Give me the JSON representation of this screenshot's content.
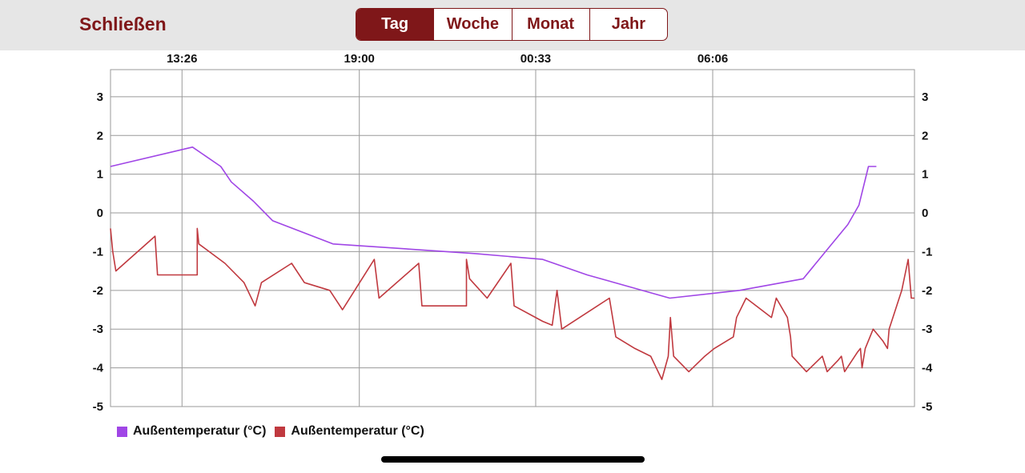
{
  "header": {
    "close_label": "Schließen",
    "tabs": [
      {
        "label": "Tag",
        "active": true
      },
      {
        "label": "Woche",
        "active": false
      },
      {
        "label": "Monat",
        "active": false
      },
      {
        "label": "Jahr",
        "active": false
      }
    ]
  },
  "colors": {
    "accent": "#7f1719",
    "series_purple": "#a046e6",
    "series_red": "#c0393f",
    "grid": "#8c8c8c"
  },
  "chart_data": {
    "type": "line",
    "title": "",
    "xlabel": "",
    "ylabel": "",
    "x_ticks": [
      "13:26",
      "19:00",
      "00:33",
      "06:06"
    ],
    "y_ticks": [
      3,
      2,
      1,
      0,
      -1,
      -2,
      -3,
      -4,
      -5
    ],
    "ylim": [
      -5,
      3.7
    ],
    "x_range_hours": [
      0,
      24.1
    ],
    "x_unit": "hours since left edge of plot (left edge ≈ 11:11)",
    "grid": true,
    "legend_position": "bottom-left",
    "series": [
      {
        "name": "Außentemperatur (°C)",
        "color": "#a046e6",
        "points": [
          [
            0.0,
            1.2
          ],
          [
            2.58,
            1.7
          ],
          [
            3.47,
            1.2
          ],
          [
            3.8,
            0.8
          ],
          [
            4.5,
            0.3
          ],
          [
            5.1,
            -0.2
          ],
          [
            7.0,
            -0.8
          ],
          [
            11.5,
            -1.05
          ],
          [
            13.6,
            -1.2
          ],
          [
            15.0,
            -1.6
          ],
          [
            17.6,
            -2.2
          ],
          [
            19.8,
            -2.0
          ],
          [
            21.8,
            -1.7
          ],
          [
            22.3,
            -1.2
          ],
          [
            22.7,
            -0.8
          ],
          [
            23.2,
            -0.3
          ],
          [
            23.55,
            0.2
          ],
          [
            23.85,
            1.2
          ],
          [
            24.1,
            1.2
          ]
        ]
      },
      {
        "name": "Außentemperatur (°C)",
        "color": "#c0393f",
        "points": [
          [
            0.0,
            -0.4
          ],
          [
            0.07,
            -1.0
          ],
          [
            0.17,
            -1.5
          ],
          [
            1.4,
            -0.6
          ],
          [
            1.48,
            -1.6
          ],
          [
            2.73,
            -1.6
          ],
          [
            2.73,
            -0.4
          ],
          [
            2.78,
            -0.8
          ],
          [
            3.6,
            -1.3
          ],
          [
            4.2,
            -1.8
          ],
          [
            4.55,
            -2.4
          ],
          [
            4.75,
            -1.8
          ],
          [
            5.7,
            -1.3
          ],
          [
            6.1,
            -1.8
          ],
          [
            6.9,
            -2.0
          ],
          [
            7.3,
            -2.5
          ],
          [
            8.3,
            -1.2
          ],
          [
            8.45,
            -2.2
          ],
          [
            9.7,
            -1.3
          ],
          [
            9.8,
            -2.4
          ],
          [
            11.2,
            -2.4
          ],
          [
            11.2,
            -1.2
          ],
          [
            11.3,
            -1.7
          ],
          [
            11.85,
            -2.2
          ],
          [
            12.6,
            -1.3
          ],
          [
            12.7,
            -2.4
          ],
          [
            13.6,
            -2.8
          ],
          [
            13.9,
            -2.9
          ],
          [
            14.05,
            -2.0
          ],
          [
            14.2,
            -3.0
          ],
          [
            15.7,
            -2.2
          ],
          [
            15.9,
            -3.2
          ],
          [
            16.5,
            -3.5
          ],
          [
            17.0,
            -3.7
          ],
          [
            17.35,
            -4.3
          ],
          [
            17.55,
            -3.7
          ],
          [
            17.62,
            -2.7
          ],
          [
            17.72,
            -3.7
          ],
          [
            18.2,
            -4.1
          ],
          [
            18.7,
            -3.7
          ],
          [
            19.0,
            -3.5
          ],
          [
            19.6,
            -3.2
          ],
          [
            19.7,
            -2.7
          ],
          [
            20.0,
            -2.2
          ],
          [
            20.8,
            -2.7
          ],
          [
            20.95,
            -2.2
          ],
          [
            21.3,
            -2.7
          ],
          [
            21.4,
            -3.2
          ],
          [
            21.45,
            -3.7
          ],
          [
            21.9,
            -4.1
          ],
          [
            22.4,
            -3.7
          ],
          [
            22.55,
            -4.1
          ],
          [
            22.9,
            -3.8
          ],
          [
            23.0,
            -3.7
          ],
          [
            23.1,
            -4.1
          ],
          [
            23.5,
            -3.6
          ],
          [
            23.6,
            -3.5
          ],
          [
            23.65,
            -4.0
          ],
          [
            23.75,
            -3.5
          ],
          [
            24.0,
            -3.0
          ],
          [
            24.3,
            -3.3
          ],
          [
            24.45,
            -3.5
          ],
          [
            24.5,
            -3.0
          ],
          [
            24.9,
            -2.0
          ],
          [
            25.1,
            -1.2
          ],
          [
            25.2,
            -2.2
          ],
          [
            25.3,
            -2.2
          ]
        ]
      }
    ]
  }
}
